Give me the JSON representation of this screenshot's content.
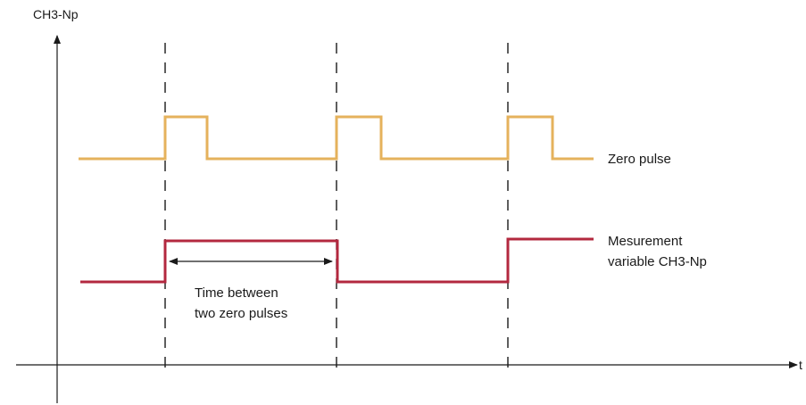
{
  "axes": {
    "y_label": "CH3-Np",
    "x_label": "t"
  },
  "signals": {
    "zero_pulse": {
      "label": "Zero pulse",
      "color": "#E5B25C"
    },
    "measurement": {
      "label_line1": "Mesurement",
      "label_line2": "variable CH3-Np",
      "color": "#B3283F"
    }
  },
  "annotation": {
    "line1": "Time between",
    "line2": "two zero pulses"
  },
  "colors": {
    "axis": "#1a1a1a",
    "marker": "#1a1a1a"
  }
}
